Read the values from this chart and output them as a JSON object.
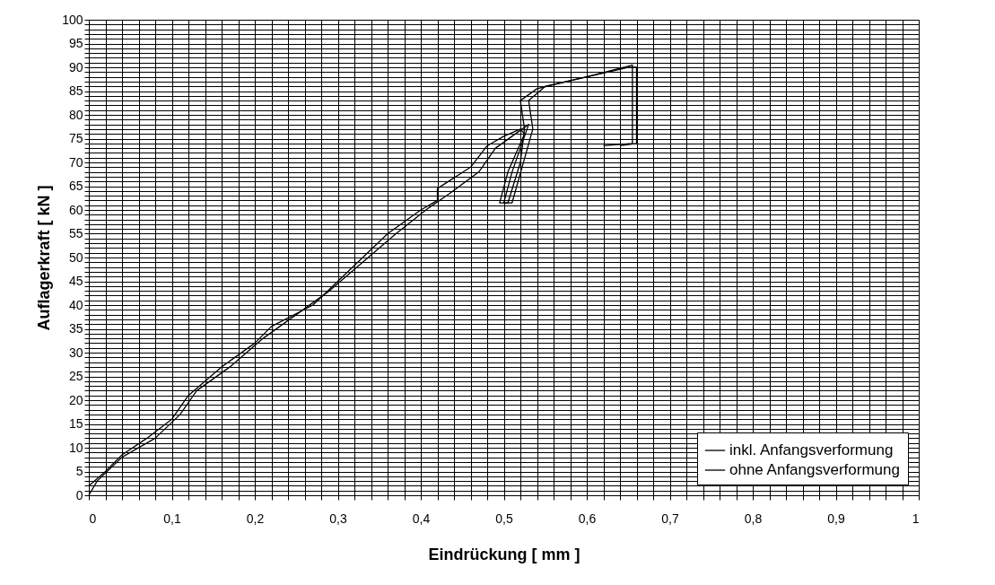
{
  "chart_data": {
    "type": "line",
    "xlabel": "Eindrückung [ mm ]",
    "ylabel": "Auflagerkraft [ kN ]",
    "xlim": [
      0,
      1
    ],
    "ylim": [
      0,
      100
    ],
    "xticks": [
      0,
      {
        "value": 0.1,
        "label": "0,1"
      },
      {
        "value": 0.2,
        "label": "0,2"
      },
      {
        "value": 0.3,
        "label": "0,3"
      },
      {
        "value": 0.4,
        "label": "0,4"
      },
      {
        "value": 0.5,
        "label": "0,5"
      },
      {
        "value": 0.6,
        "label": "0,6"
      },
      {
        "value": 0.7,
        "label": "0,7"
      },
      {
        "value": 0.8,
        "label": "0,8"
      },
      {
        "value": 0.9,
        "label": "0,9"
      },
      1,
      {
        "value": 0.02,
        "label": null
      },
      {
        "value": 0.04,
        "label": null
      },
      {
        "value": 0.06,
        "label": null
      },
      {
        "value": 0.08,
        "label": null
      },
      {
        "value": 0.12,
        "label": null
      },
      {
        "value": 0.14,
        "label": null
      },
      {
        "value": 0.16,
        "label": null
      },
      {
        "value": 0.18,
        "label": null
      },
      {
        "value": 0.22,
        "label": null
      },
      {
        "value": 0.24,
        "label": null
      },
      {
        "value": 0.26,
        "label": null
      },
      {
        "value": 0.28,
        "label": null
      },
      {
        "value": 0.32,
        "label": null
      },
      {
        "value": 0.34,
        "label": null
      },
      {
        "value": 0.36,
        "label": null
      },
      {
        "value": 0.38,
        "label": null
      },
      {
        "value": 0.42,
        "label": null
      },
      {
        "value": 0.44,
        "label": null
      },
      {
        "value": 0.46,
        "label": null
      },
      {
        "value": 0.48,
        "label": null
      },
      {
        "value": 0.52,
        "label": null
      },
      {
        "value": 0.54,
        "label": null
      },
      {
        "value": 0.56,
        "label": null
      },
      {
        "value": 0.58,
        "label": null
      },
      {
        "value": 0.62,
        "label": null
      },
      {
        "value": 0.64,
        "label": null
      },
      {
        "value": 0.66,
        "label": null
      },
      {
        "value": 0.68,
        "label": null
      },
      {
        "value": 0.72,
        "label": null
      },
      {
        "value": 0.74,
        "label": null
      },
      {
        "value": 0.76,
        "label": null
      },
      {
        "value": 0.78,
        "label": null
      },
      {
        "value": 0.82,
        "label": null
      },
      {
        "value": 0.84,
        "label": null
      },
      {
        "value": 0.86,
        "label": null
      },
      {
        "value": 0.88,
        "label": null
      },
      {
        "value": 0.92,
        "label": null
      },
      {
        "value": 0.94,
        "label": null
      },
      {
        "value": 0.96,
        "label": null
      },
      {
        "value": 0.98,
        "label": null
      }
    ],
    "yticks": [
      0,
      5,
      10,
      15,
      20,
      25,
      30,
      35,
      40,
      45,
      50,
      55,
      60,
      65,
      70,
      75,
      80,
      85,
      90,
      95,
      100,
      {
        "value": 1,
        "label": null
      },
      {
        "value": 2,
        "label": null
      },
      {
        "value": 3,
        "label": null
      },
      {
        "value": 4,
        "label": null
      },
      {
        "value": 6,
        "label": null
      },
      {
        "value": 7,
        "label": null
      },
      {
        "value": 8,
        "label": null
      },
      {
        "value": 9,
        "label": null
      },
      {
        "value": 11,
        "label": null
      },
      {
        "value": 12,
        "label": null
      },
      {
        "value": 13,
        "label": null
      },
      {
        "value": 14,
        "label": null
      },
      {
        "value": 16,
        "label": null
      },
      {
        "value": 17,
        "label": null
      },
      {
        "value": 18,
        "label": null
      },
      {
        "value": 19,
        "label": null
      },
      {
        "value": 21,
        "label": null
      },
      {
        "value": 22,
        "label": null
      },
      {
        "value": 23,
        "label": null
      },
      {
        "value": 24,
        "label": null
      },
      {
        "value": 26,
        "label": null
      },
      {
        "value": 27,
        "label": null
      },
      {
        "value": 28,
        "label": null
      },
      {
        "value": 29,
        "label": null
      },
      {
        "value": 31,
        "label": null
      },
      {
        "value": 32,
        "label": null
      },
      {
        "value": 33,
        "label": null
      },
      {
        "value": 34,
        "label": null
      },
      {
        "value": 36,
        "label": null
      },
      {
        "value": 37,
        "label": null
      },
      {
        "value": 38,
        "label": null
      },
      {
        "value": 39,
        "label": null
      },
      {
        "value": 41,
        "label": null
      },
      {
        "value": 42,
        "label": null
      },
      {
        "value": 43,
        "label": null
      },
      {
        "value": 44,
        "label": null
      },
      {
        "value": 46,
        "label": null
      },
      {
        "value": 47,
        "label": null
      },
      {
        "value": 48,
        "label": null
      },
      {
        "value": 49,
        "label": null
      },
      {
        "value": 51,
        "label": null
      },
      {
        "value": 52,
        "label": null
      },
      {
        "value": 53,
        "label": null
      },
      {
        "value": 54,
        "label": null
      },
      {
        "value": 56,
        "label": null
      },
      {
        "value": 57,
        "label": null
      },
      {
        "value": 58,
        "label": null
      },
      {
        "value": 59,
        "label": null
      },
      {
        "value": 61,
        "label": null
      },
      {
        "value": 62,
        "label": null
      },
      {
        "value": 63,
        "label": null
      },
      {
        "value": 64,
        "label": null
      },
      {
        "value": 66,
        "label": null
      },
      {
        "value": 67,
        "label": null
      },
      {
        "value": 68,
        "label": null
      },
      {
        "value": 69,
        "label": null
      },
      {
        "value": 71,
        "label": null
      },
      {
        "value": 72,
        "label": null
      },
      {
        "value": 73,
        "label": null
      },
      {
        "value": 74,
        "label": null
      },
      {
        "value": 76,
        "label": null
      },
      {
        "value": 77,
        "label": null
      },
      {
        "value": 78,
        "label": null
      },
      {
        "value": 79,
        "label": null
      },
      {
        "value": 81,
        "label": null
      },
      {
        "value": 82,
        "label": null
      },
      {
        "value": 83,
        "label": null
      },
      {
        "value": 84,
        "label": null
      },
      {
        "value": 86,
        "label": null
      },
      {
        "value": 87,
        "label": null
      },
      {
        "value": 88,
        "label": null
      },
      {
        "value": 89,
        "label": null
      },
      {
        "value": 91,
        "label": null
      },
      {
        "value": 92,
        "label": null
      },
      {
        "value": 93,
        "label": null
      },
      {
        "value": 94,
        "label": null
      },
      {
        "value": 96,
        "label": null
      },
      {
        "value": 97,
        "label": null
      },
      {
        "value": 98,
        "label": null
      },
      {
        "value": 99,
        "label": null
      }
    ],
    "grid": true,
    "legend": "bottom right",
    "marker": "none",
    "line_style": "solid",
    "series": [
      {
        "name": "inkl. Anfangsverformung",
        "color": "#000000",
        "x": [
          0,
          0.01,
          0.04,
          0.08,
          0.11,
          0.13,
          0.17,
          0.21,
          0.25,
          0.29,
          0.33,
          0.37,
          0.41,
          0.435,
          0.47,
          0.49,
          0.51,
          0.53,
          0.51,
          0.5,
          0.51,
          0.535,
          0.53,
          0.55,
          0.6,
          0.65,
          0.66,
          0.66,
          0.64
        ],
        "values": [
          0,
          3,
          8,
          12,
          17,
          22,
          27,
          33,
          38,
          43,
          49,
          55,
          60.5,
          63.5,
          68,
          73,
          75.5,
          78,
          68,
          61.5,
          61.5,
          77,
          83,
          86,
          88,
          90,
          90,
          74,
          73.5
        ]
      },
      {
        "name": "ohne Anfangsverformung",
        "color": "#000000",
        "x": [
          0,
          0.02,
          0.04,
          0.07,
          0.1,
          0.12,
          0.16,
          0.2,
          0.22,
          0.27,
          0.3,
          0.33,
          0.36,
          0.4,
          0.42,
          0.42,
          0.46,
          0.48,
          0.5,
          0.52,
          0.525,
          0.505,
          0.495,
          0.505,
          0.52,
          0.525,
          0.52,
          0.54,
          0.6,
          0.645,
          0.655,
          0.655,
          0.62
        ],
        "values": [
          2,
          5,
          8.5,
          12,
          16,
          21,
          27,
          32,
          35.5,
          40,
          45,
          50,
          55,
          60,
          62,
          64.5,
          69,
          73.5,
          75.5,
          77,
          76,
          68,
          61.5,
          61.5,
          70,
          77,
          83,
          85.5,
          88,
          90,
          90.5,
          74,
          73.5
        ]
      }
    ]
  }
}
